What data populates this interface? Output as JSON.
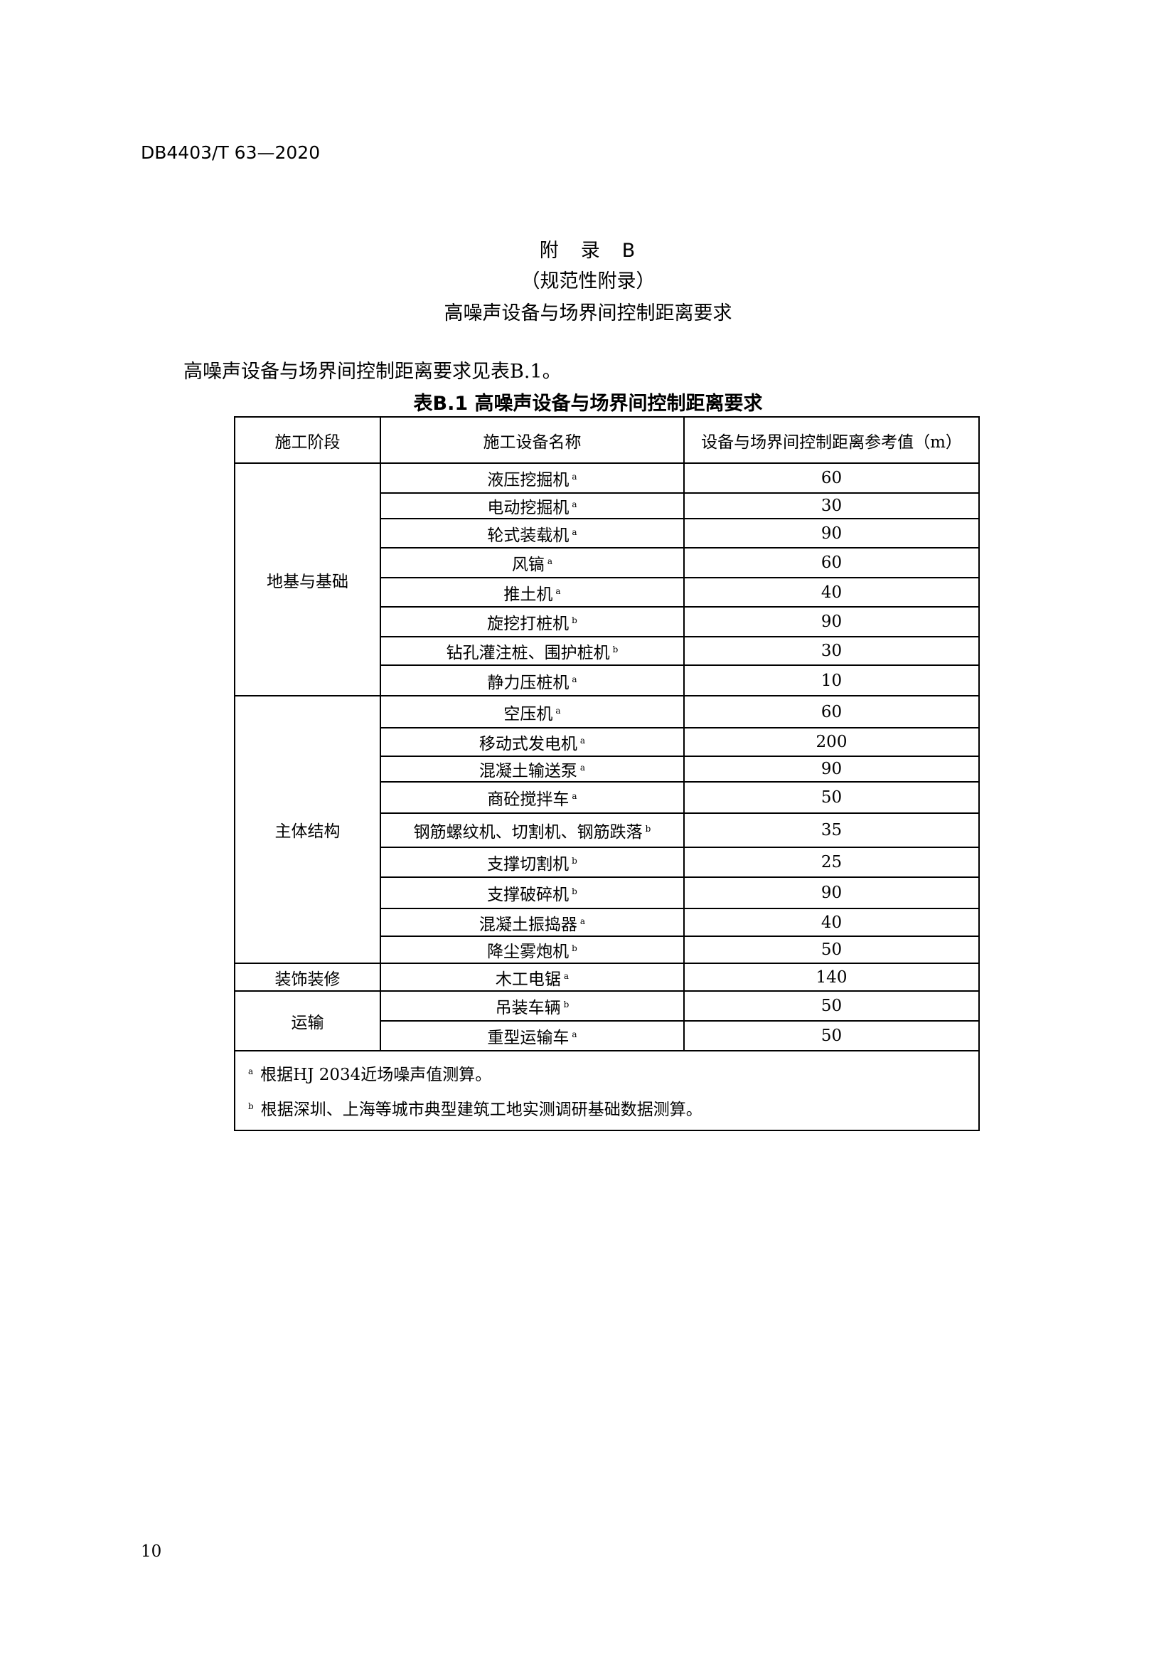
{
  "header": {
    "doc_number": "DB4403/T 63—2020"
  },
  "annex": {
    "label": "附　录　B",
    "type": "（规范性附录）",
    "title": "高噪声设备与场界间控制距离要求"
  },
  "intro": "高噪声设备与场界间控制距离要求见表B.1。",
  "table": {
    "caption": "表B.1 高噪声设备与场界间控制距离要求",
    "headers": [
      "施工阶段",
      "施工设备名称",
      "设备与场界间控制距离参考值（m）"
    ],
    "groups": [
      {
        "stage": "地基与基础",
        "rows": [
          {
            "name": "液压挖掘机",
            "note": "a",
            "value": "60"
          },
          {
            "name": "电动挖掘机",
            "note": "a",
            "value": "30"
          },
          {
            "name": "轮式装载机",
            "note": "a",
            "value": "90"
          },
          {
            "name": "风镐",
            "note": "a",
            "value": "60"
          },
          {
            "name": "推土机",
            "note": "a",
            "value": "40"
          },
          {
            "name": "旋挖打桩机",
            "note": "b",
            "value": "90"
          },
          {
            "name": "钻孔灌注桩、围护桩机",
            "note": "b",
            "value": "30"
          },
          {
            "name": "静力压桩机",
            "note": "a",
            "value": "10"
          }
        ]
      },
      {
        "stage": "主体结构",
        "rows": [
          {
            "name": "空压机",
            "note": "a",
            "value": "60"
          },
          {
            "name": "移动式发电机",
            "note": "a",
            "value": "200"
          },
          {
            "name": "混凝土输送泵",
            "note": "a",
            "value": "90"
          },
          {
            "name": "商砼搅拌车",
            "note": "a",
            "value": "50"
          },
          {
            "name": "钢筋螺纹机、切割机、钢筋跌落",
            "note": "b",
            "value": "35"
          },
          {
            "name": "支撑切割机",
            "note": "b",
            "value": "25"
          },
          {
            "name": "支撑破碎机",
            "note": "b",
            "value": "90"
          },
          {
            "name": "混凝土振捣器",
            "note": "a",
            "value": "40"
          },
          {
            "name": "降尘雾炮机",
            "note": "b",
            "value": "50"
          }
        ]
      },
      {
        "stage": "装饰装修",
        "rows": [
          {
            "name": "木工电锯",
            "note": "a",
            "value": "140"
          }
        ]
      },
      {
        "stage": "运输",
        "rows": [
          {
            "name": "吊装车辆",
            "note": "b",
            "value": "50"
          },
          {
            "name": "重型运输车",
            "note": "a",
            "value": "50"
          }
        ]
      }
    ],
    "footnotes": [
      {
        "mark": "a",
        "text": "根据HJ 2034近场噪声值测算。"
      },
      {
        "mark": "b",
        "text": "根据深圳、上海等城市典型建筑工地实测调研基础数据测算。"
      }
    ]
  },
  "page_number": "10"
}
